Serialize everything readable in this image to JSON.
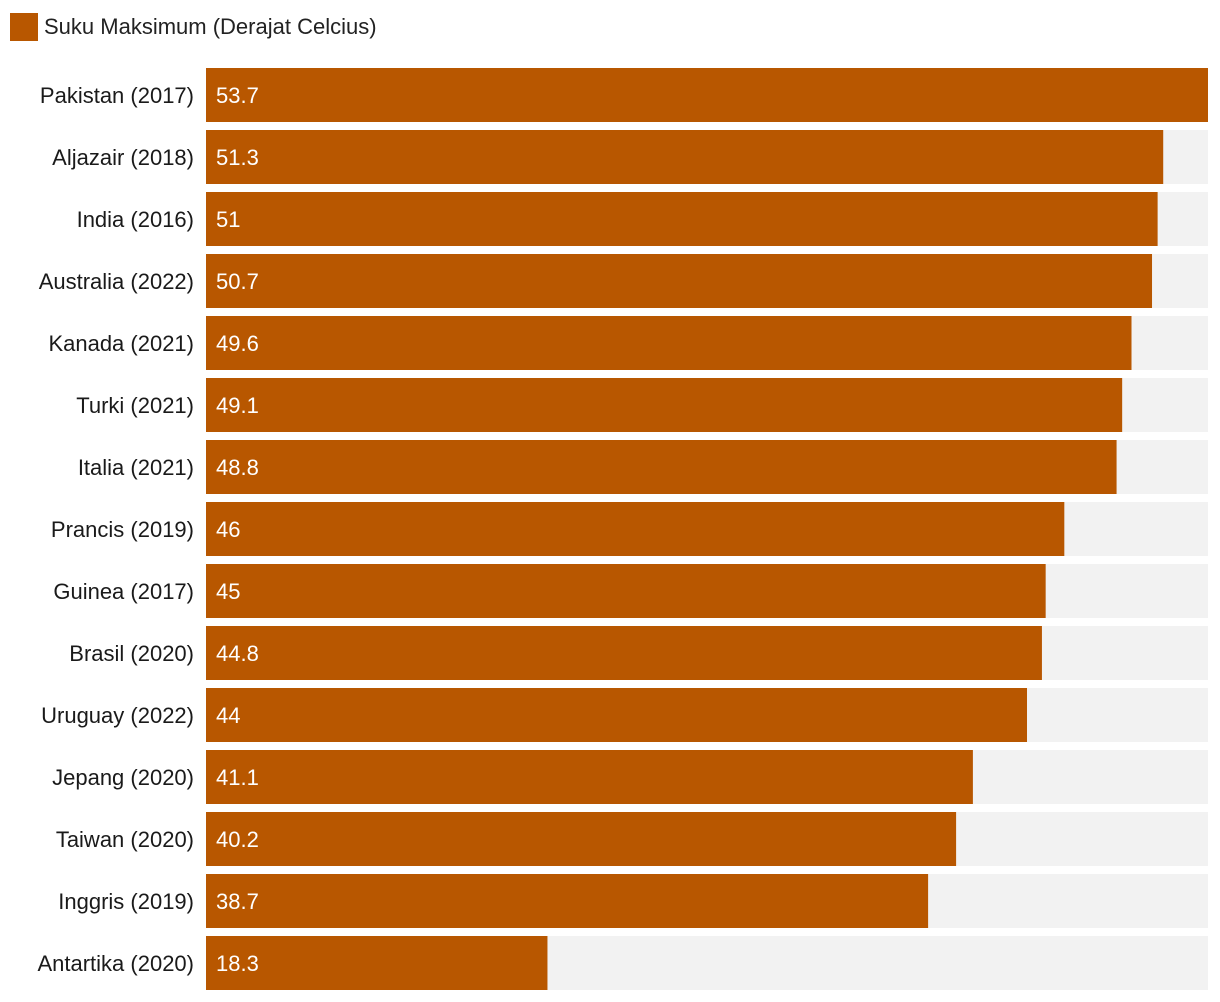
{
  "chart_data": {
    "type": "bar",
    "orientation": "horizontal",
    "title": "",
    "xlabel": "",
    "ylabel": "",
    "legend": {
      "placement": "top-left",
      "entries": [
        {
          "name": "Suku Maksimum (Derajat Celcius)",
          "color": "#b85700"
        }
      ]
    },
    "categories": [
      "Pakistan (2017)",
      "Aljazair (2018)",
      "India (2016)",
      "Australia (2022)",
      "Kanada (2021)",
      "Turki (2021)",
      "Italia (2021)",
      "Prancis (2019)",
      "Guinea (2017)",
      "Brasil (2020)",
      "Uruguay (2022)",
      "Jepang (2020)",
      "Taiwan (2020)",
      "Inggris (2019)",
      "Antartika (2020)"
    ],
    "series": [
      {
        "name": "Suku Maksimum (Derajat Celcius)",
        "values": [
          53.7,
          51.3,
          51,
          50.7,
          49.6,
          49.1,
          48.8,
          46,
          45,
          44.8,
          44,
          41.1,
          40.2,
          38.7,
          18.3
        ],
        "value_labels": [
          "53.7",
          "51.3",
          "51",
          "50.7",
          "49.6",
          "49.1",
          "48.8",
          "46",
          "45",
          "44.8",
          "44",
          "41.1",
          "40.2",
          "38.7",
          "18.3"
        ]
      }
    ],
    "xlim": [
      0,
      53.7
    ],
    "grid": false,
    "colors": {
      "bar": "#b85700",
      "track": "#f2f2f2"
    }
  }
}
